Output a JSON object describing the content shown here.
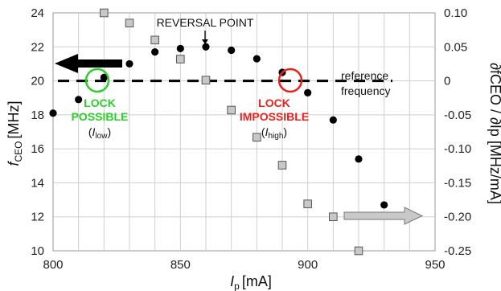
{
  "chart_data": {
    "type": "scatter",
    "x_axis": {
      "label_main": "I",
      "label_sub": "p",
      "label_unit": "[mA]",
      "range": [
        800,
        950
      ],
      "ticks": [
        800,
        850,
        900,
        950
      ],
      "tick_labels": [
        "800",
        "850",
        "900",
        "950"
      ]
    },
    "y_left": {
      "label_main": "f",
      "label_sub": "CEO",
      "label_unit": "[MHz]",
      "range": [
        10,
        24
      ],
      "ticks": [
        10,
        12,
        14,
        16,
        18,
        20,
        22,
        24
      ],
      "tick_labels": [
        "10",
        "12",
        "14",
        "16",
        "18",
        "20",
        "22",
        "24"
      ]
    },
    "y_right": {
      "label": "∂fCEO / ∂Ip [MHz/mA]",
      "range": [
        -0.25,
        0.1
      ],
      "ticks": [
        -0.25,
        -0.2,
        -0.15,
        -0.1,
        -0.05,
        0,
        0.05,
        0.1
      ],
      "tick_labels": [
        "-0.25",
        "-0.20",
        "-0.15",
        "-0.10",
        "-0.05",
        "0",
        "0.05",
        "0.10"
      ]
    },
    "grid": true,
    "series": [
      {
        "marker": "circle",
        "color": "#000000",
        "axis": "left",
        "x": [
          800,
          810,
          820,
          830,
          840,
          850,
          860,
          870,
          880,
          890,
          900,
          910,
          920,
          930
        ],
        "y": [
          18.1,
          18.9,
          20.2,
          21.0,
          21.7,
          21.9,
          22.0,
          21.8,
          21.3,
          20.5,
          19.3,
          17.7,
          15.4,
          12.7
        ]
      },
      {
        "marker": "square",
        "color": "#c8c8c8",
        "axis": "right",
        "x": [
          820,
          830,
          840,
          850,
          860,
          870,
          880,
          890,
          900,
          910,
          920
        ],
        "y": [
          0.1,
          0.085,
          0.06,
          0.032,
          0.001,
          -0.043,
          -0.083,
          -0.124,
          -0.181,
          -0.2,
          -0.25
        ]
      }
    ],
    "reference_level": 20,
    "annotations": {
      "reversal": "REVERSAL POINT",
      "reference_line1": "reference",
      "reference_line2": "frequency",
      "lock_possible_line1": "LOCK",
      "lock_possible_line2": "POSSIBLE",
      "lock_possible_sub_main": "I",
      "lock_possible_sub_idx": "low",
      "lock_impossible_line1": "LOCK",
      "lock_impossible_line2": "IMPOSSIBLE",
      "lock_impossible_sub_main": "I",
      "lock_impossible_sub_idx": "high"
    },
    "colors": {
      "lock_possible": "#2ecc2e",
      "lock_impossible": "#e8231f",
      "arrow_left": "#000000",
      "arrow_right": "#c8c8c8"
    }
  }
}
